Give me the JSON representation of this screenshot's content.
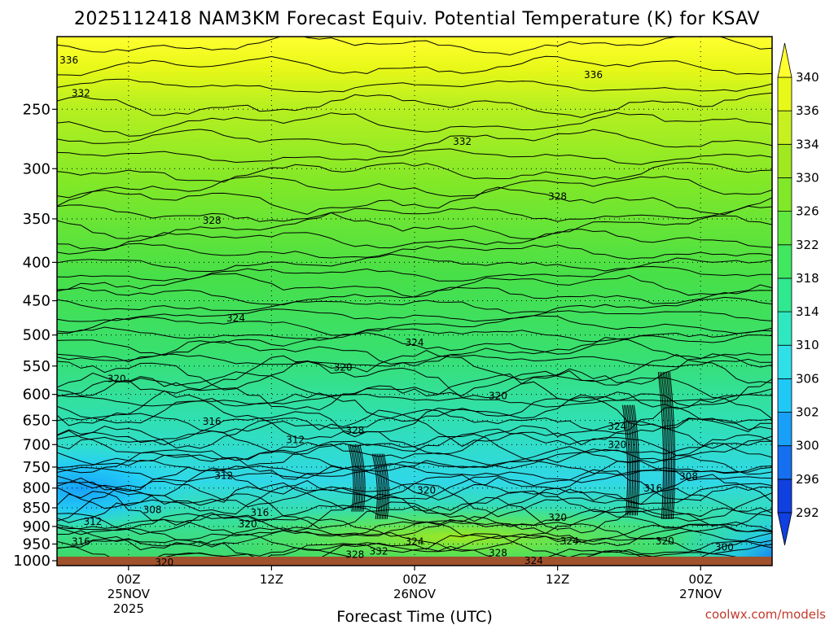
{
  "chart_data": {
    "type": "heatmap",
    "title": "2025112418 NAM3KM Forecast Equiv. Potential Temperature (K) for KSAV",
    "xlabel": "Forecast Time (UTC)",
    "ylabel": "",
    "y_axis_reversed": true,
    "y_ticks": [
      250,
      300,
      350,
      400,
      450,
      500,
      550,
      600,
      650,
      700,
      750,
      800,
      850,
      900,
      950,
      1000
    ],
    "ylim": [
      1000,
      200
    ],
    "x_ticks": [
      {
        "label_lines": [
          "00Z",
          "25NOV",
          "2025"
        ],
        "hour": 6
      },
      {
        "label_lines": [
          "12Z"
        ],
        "hour": 18
      },
      {
        "label_lines": [
          "00Z",
          "26NOV"
        ],
        "hour": 30
      },
      {
        "label_lines": [
          "12Z"
        ],
        "hour": 42
      },
      {
        "label_lines": [
          "00Z",
          "27NOV"
        ],
        "hour": 54
      }
    ],
    "xlim_hours": [
      0,
      60
    ],
    "grid": true,
    "colorbar": {
      "levels": [
        292,
        296,
        300,
        302,
        306,
        310,
        314,
        318,
        322,
        326,
        330,
        334,
        336,
        340
      ],
      "colors": [
        "#1040e0",
        "#1470f0",
        "#18a0f8",
        "#20c8f8",
        "#30e0e8",
        "#30e8c0",
        "#30e890",
        "#40e860",
        "#60e840",
        "#80e828",
        "#a0e820",
        "#c8f020",
        "#e8f818",
        "#ffff30"
      ]
    },
    "contour_labels": [
      {
        "text": "336",
        "t": 1,
        "p": 215
      },
      {
        "text": "336",
        "t": 45,
        "p": 225
      },
      {
        "text": "332",
        "t": 2,
        "p": 238
      },
      {
        "text": "332",
        "t": 34,
        "p": 276
      },
      {
        "text": "328",
        "t": 13,
        "p": 352
      },
      {
        "text": "328",
        "t": 42,
        "p": 327
      },
      {
        "text": "324",
        "t": 15,
        "p": 475
      },
      {
        "text": "324",
        "t": 30,
        "p": 512
      },
      {
        "text": "320",
        "t": 5,
        "p": 572
      },
      {
        "text": "320",
        "t": 24,
        "p": 552
      },
      {
        "text": "320",
        "t": 37,
        "p": 603
      },
      {
        "text": "316",
        "t": 13,
        "p": 652
      },
      {
        "text": "312",
        "t": 20,
        "p": 690
      },
      {
        "text": "328",
        "t": 25,
        "p": 670
      },
      {
        "text": "324",
        "t": 47,
        "p": 662
      },
      {
        "text": "320",
        "t": 47,
        "p": 700
      },
      {
        "text": "312",
        "t": 14,
        "p": 770
      },
      {
        "text": "320",
        "t": 31,
        "p": 806
      },
      {
        "text": "316",
        "t": 50,
        "p": 801
      },
      {
        "text": "308",
        "t": 53,
        "p": 772
      },
      {
        "text": "308",
        "t": 8,
        "p": 855
      },
      {
        "text": "316",
        "t": 17,
        "p": 863
      },
      {
        "text": "312",
        "t": 3,
        "p": 887
      },
      {
        "text": "320",
        "t": 16,
        "p": 893
      },
      {
        "text": "320",
        "t": 42,
        "p": 876
      },
      {
        "text": "324",
        "t": 30,
        "p": 943
      },
      {
        "text": "324",
        "t": 43,
        "p": 942
      },
      {
        "text": "320",
        "t": 51,
        "p": 942
      },
      {
        "text": "316",
        "t": 2,
        "p": 943
      },
      {
        "text": "300",
        "t": 56,
        "p": 960
      },
      {
        "text": "332",
        "t": 27,
        "p": 971
      },
      {
        "text": "328",
        "t": 25,
        "p": 981
      },
      {
        "text": "328",
        "t": 37,
        "p": 977
      },
      {
        "text": "324",
        "t": 40,
        "p": 1000
      },
      {
        "text": "320",
        "t": 9,
        "p": 1005
      }
    ]
  },
  "watermark": "coolwx.com/models"
}
